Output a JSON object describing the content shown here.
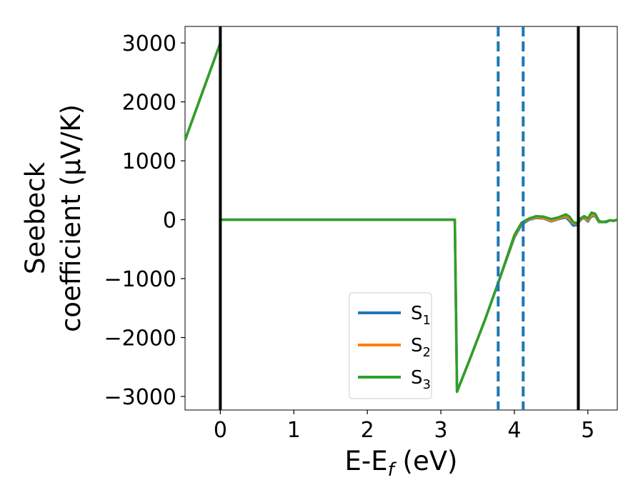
{
  "chart_data": {
    "type": "line",
    "xlabel": "E-E",
    "xlabel_sub": "f",
    "xlabel_unit": " (eV)",
    "ylabel_line1": "Seebeck",
    "ylabel_line2": "coefficient  (μV/K)",
    "xlim": [
      -0.48,
      5.4
    ],
    "ylim": [
      -3230,
      3280
    ],
    "xticks": [
      0,
      1,
      2,
      3,
      4,
      5
    ],
    "xtick_labels": [
      "0",
      "1",
      "2",
      "3",
      "4",
      "5"
    ],
    "yticks": [
      3000,
      2000,
      1000,
      0,
      -1000,
      -2000,
      -3000
    ],
    "ytick_labels": [
      "3000",
      "2000",
      "1000",
      "0",
      "−1000",
      "−2000",
      "−3000"
    ],
    "grid": false,
    "legend_position": "lower-right",
    "vlines_solid": [
      0.0,
      4.87
    ],
    "vlines_dashed": [
      3.78,
      4.12
    ],
    "vline_solid_color": "#000000",
    "vline_dashed_color": "#1f77b4",
    "series": [
      {
        "name": "S",
        "sub": "1",
        "color": "#1f77b4",
        "x": [
          -0.48,
          0.0,
          0.0,
          3.19,
          3.19,
          3.22,
          3.4,
          3.6,
          3.8,
          4.0,
          4.1,
          4.2,
          4.3,
          4.4,
          4.5,
          4.6,
          4.7,
          4.75,
          4.8,
          4.85,
          4.9,
          4.95,
          5.0,
          5.05,
          5.1,
          5.15,
          5.2,
          5.25,
          5.3,
          5.35,
          5.4
        ],
        "y": [
          1350,
          3000,
          0,
          0,
          0,
          -2920,
          -2350,
          -1700,
          -1000,
          -300,
          -80,
          0,
          30,
          20,
          -30,
          10,
          40,
          -20,
          -100,
          -90,
          0,
          30,
          -30,
          60,
          60,
          -40,
          -40,
          -40,
          -10,
          -20,
          0
        ]
      },
      {
        "name": "S",
        "sub": "2",
        "color": "#ff7f0e",
        "x": [
          -0.48,
          0.0,
          0.0,
          3.19,
          3.19,
          3.22,
          3.4,
          3.6,
          3.8,
          4.0,
          4.1,
          4.2,
          4.3,
          4.4,
          4.5,
          4.6,
          4.7,
          4.75,
          4.8,
          4.85,
          4.9,
          4.95,
          5.0,
          5.05,
          5.1,
          5.15,
          5.2,
          5.25,
          5.3,
          5.35,
          5.4
        ],
        "y": [
          1350,
          3000,
          0,
          0,
          0,
          -2920,
          -2350,
          -1700,
          -1000,
          -280,
          -60,
          10,
          40,
          30,
          -20,
          20,
          60,
          10,
          -60,
          -70,
          10,
          40,
          -10,
          80,
          70,
          -30,
          -40,
          -30,
          -10,
          -20,
          0
        ]
      },
      {
        "name": "S",
        "sub": "3",
        "color": "#2ca02c",
        "x": [
          -0.48,
          0.0,
          0.0,
          3.19,
          3.19,
          3.22,
          3.4,
          3.6,
          3.8,
          4.0,
          4.1,
          4.2,
          4.3,
          4.4,
          4.5,
          4.6,
          4.7,
          4.75,
          4.8,
          4.85,
          4.9,
          4.95,
          5.0,
          5.05,
          5.1,
          5.15,
          5.2,
          5.25,
          5.3,
          5.35,
          5.4
        ],
        "y": [
          1350,
          3000,
          0,
          0,
          0,
          -2920,
          -2350,
          -1700,
          -1000,
          -260,
          -50,
          20,
          60,
          50,
          10,
          40,
          90,
          50,
          -40,
          -60,
          20,
          60,
          20,
          120,
          100,
          -20,
          -40,
          -30,
          -10,
          -20,
          0
        ]
      }
    ]
  }
}
